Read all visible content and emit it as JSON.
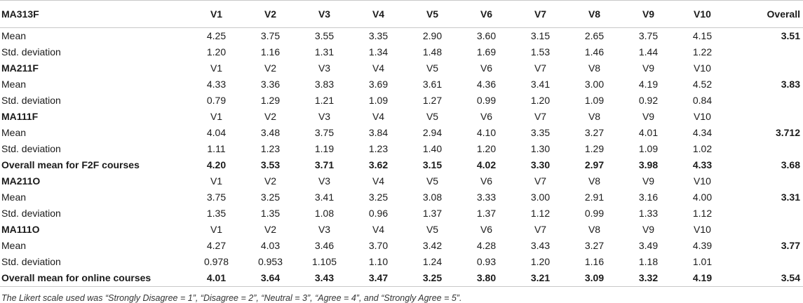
{
  "table": {
    "columns": [
      "MA313F",
      "V1",
      "V2",
      "V3",
      "V4",
      "V5",
      "V6",
      "V7",
      "V8",
      "V9",
      "V10",
      "Overall"
    ],
    "rows": [
      {
        "label": "Mean",
        "values": [
          "4.25",
          "3.75",
          "3.55",
          "3.35",
          "2.90",
          "3.60",
          "3.15",
          "2.65",
          "3.75",
          "4.15"
        ],
        "overall": "3.51",
        "bold": false
      },
      {
        "label": "Std. deviation",
        "values": [
          "1.20",
          "1.16",
          "1.31",
          "1.34",
          "1.48",
          "1.69",
          "1.53",
          "1.46",
          "1.44",
          "1.22"
        ],
        "overall": "",
        "bold": false
      },
      {
        "label": "MA211F",
        "values": [
          "V1",
          "V2",
          "V3",
          "V4",
          "V5",
          "V6",
          "V7",
          "V8",
          "V9",
          "V10"
        ],
        "overall": "",
        "bold": false,
        "label_bold": true
      },
      {
        "label": "Mean",
        "values": [
          "4.33",
          "3.36",
          "3.83",
          "3.69",
          "3.61",
          "4.36",
          "3.41",
          "3.00",
          "4.19",
          "4.52"
        ],
        "overall": "3.83",
        "bold": false
      },
      {
        "label": "Std. deviation",
        "values": [
          "0.79",
          "1.29",
          "1.21",
          "1.09",
          "1.27",
          "0.99",
          "1.20",
          "1.09",
          "0.92",
          "0.84"
        ],
        "overall": "",
        "bold": false
      },
      {
        "label": "MA111F",
        "values": [
          "V1",
          "V2",
          "V3",
          "V4",
          "V5",
          "V6",
          "V7",
          "V8",
          "V9",
          "V10"
        ],
        "overall": "",
        "bold": false,
        "label_bold": true
      },
      {
        "label": "Mean",
        "values": [
          "4.04",
          "3.48",
          "3.75",
          "3.84",
          "2.94",
          "4.10",
          "3.35",
          "3.27",
          "4.01",
          "4.34"
        ],
        "overall": "3.712",
        "bold": false
      },
      {
        "label": "Std. deviation",
        "values": [
          "1.11",
          "1.23",
          "1.19",
          "1.23",
          "1.40",
          "1.20",
          "1.30",
          "1.29",
          "1.09",
          "1.02"
        ],
        "overall": "",
        "bold": false
      },
      {
        "label": "Overall mean for F2F courses",
        "values": [
          "4.20",
          "3.53",
          "3.71",
          "3.62",
          "3.15",
          "4.02",
          "3.30",
          "2.97",
          "3.98",
          "4.33"
        ],
        "overall": "3.68",
        "bold": true
      },
      {
        "label": "MA211O",
        "values": [
          "V1",
          "V2",
          "V3",
          "V4",
          "V5",
          "V6",
          "V7",
          "V8",
          "V9",
          "V10"
        ],
        "overall": "",
        "bold": false,
        "label_bold": true
      },
      {
        "label": "Mean",
        "values": [
          "3.75",
          "3.25",
          "3.41",
          "3.25",
          "3.08",
          "3.33",
          "3.00",
          "2.91",
          "3.16",
          "4.00"
        ],
        "overall": "3.31",
        "bold": false
      },
      {
        "label": "Std. deviation",
        "values": [
          "1.35",
          "1.35",
          "1.08",
          "0.96",
          "1.37",
          "1.37",
          "1.12",
          "0.99",
          "1.33",
          "1.12"
        ],
        "overall": "",
        "bold": false
      },
      {
        "label": "MA111O",
        "values": [
          "V1",
          "V2",
          "V3",
          "V4",
          "V5",
          "V6",
          "V7",
          "V8",
          "V9",
          "V10"
        ],
        "overall": "",
        "bold": false,
        "label_bold": true
      },
      {
        "label": "Mean",
        "values": [
          "4.27",
          "4.03",
          "3.46",
          "3.70",
          "3.42",
          "4.28",
          "3.43",
          "3.27",
          "3.49",
          "4.39"
        ],
        "overall": "3.77",
        "bold": false
      },
      {
        "label": "Std. deviation",
        "values": [
          "0.978",
          "0.953",
          "1.105",
          "1.10",
          "1.24",
          "0.93",
          "1.20",
          "1.16",
          "1.18",
          "1.01"
        ],
        "overall": "",
        "bold": false
      },
      {
        "label": "Overall mean for online courses",
        "values": [
          "4.01",
          "3.64",
          "3.43",
          "3.47",
          "3.25",
          "3.80",
          "3.21",
          "3.09",
          "3.32",
          "4.19"
        ],
        "overall": "3.54",
        "bold": true
      }
    ]
  },
  "note": "The Likert scale used was “Strongly Disagree = 1”, “Disagree = 2”, “Neutral = 3”, “Agree = 4”, and “Strongly Agree = 5”."
}
